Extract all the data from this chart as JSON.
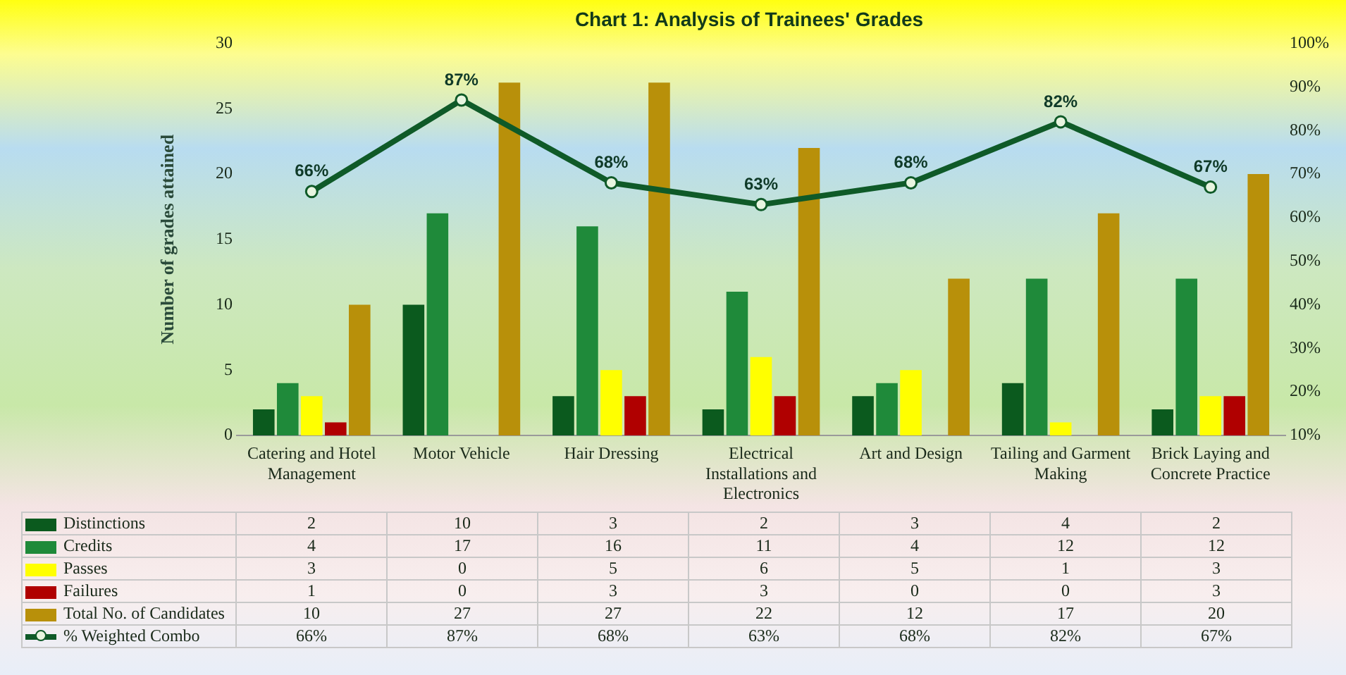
{
  "chart_data": {
    "type": "bar",
    "title": "Chart 1: Analysis of Trainees' Grades",
    "ylabel": "Number of grades attained",
    "categories": [
      "Catering and Hotel Management",
      "Motor Vehicle",
      "Hair Dressing",
      "Electrical Installations and Electronics",
      "Art and Design",
      "Tailing and Garment Making",
      "Brick Laying and Concrete Practice"
    ],
    "series": [
      {
        "name": "Distinctions",
        "color": "#0b5a1e",
        "values": [
          2,
          10,
          3,
          2,
          3,
          4,
          2
        ]
      },
      {
        "name": "Credits",
        "color": "#1f8a3a",
        "values": [
          4,
          17,
          16,
          11,
          4,
          12,
          12
        ]
      },
      {
        "name": "Passes",
        "color": "#ffff00",
        "values": [
          3,
          0,
          5,
          6,
          5,
          1,
          3
        ]
      },
      {
        "name": "Failures",
        "color": "#b00000",
        "values": [
          1,
          0,
          3,
          3,
          0,
          0,
          3
        ]
      },
      {
        "name": "Total No. of Candidates",
        "color": "#b8900a",
        "values": [
          10,
          27,
          27,
          22,
          12,
          17,
          20
        ]
      },
      {
        "name": "% Weighted Combo",
        "type": "line",
        "axis": "y2",
        "color": "#0f5a28",
        "values": [
          66,
          87,
          68,
          63,
          68,
          82,
          67
        ],
        "value_labels": [
          "66%",
          "87%",
          "68%",
          "63%",
          "68%",
          "82%",
          "67%"
        ]
      }
    ],
    "ylim": [
      0,
      30
    ],
    "yticks": [
      0,
      5,
      10,
      15,
      20,
      25,
      30
    ],
    "y2lim": [
      10,
      100
    ],
    "y2ticks": [
      {
        "value": 10,
        "label": "10%"
      },
      {
        "value": 20,
        "label": "20%"
      },
      {
        "value": 30,
        "label": "30%"
      },
      {
        "value": 40,
        "label": "40%"
      },
      {
        "value": 50,
        "label": "50%"
      },
      {
        "value": 60,
        "label": "60%"
      },
      {
        "value": 70,
        "label": "70%"
      },
      {
        "value": 80,
        "label": "80%"
      },
      {
        "value": 90,
        "label": "90%"
      },
      {
        "value": 100,
        "label": "100%"
      }
    ],
    "grid": false,
    "legend": "bottom",
    "marker": "circle",
    "data_labels": true
  }
}
